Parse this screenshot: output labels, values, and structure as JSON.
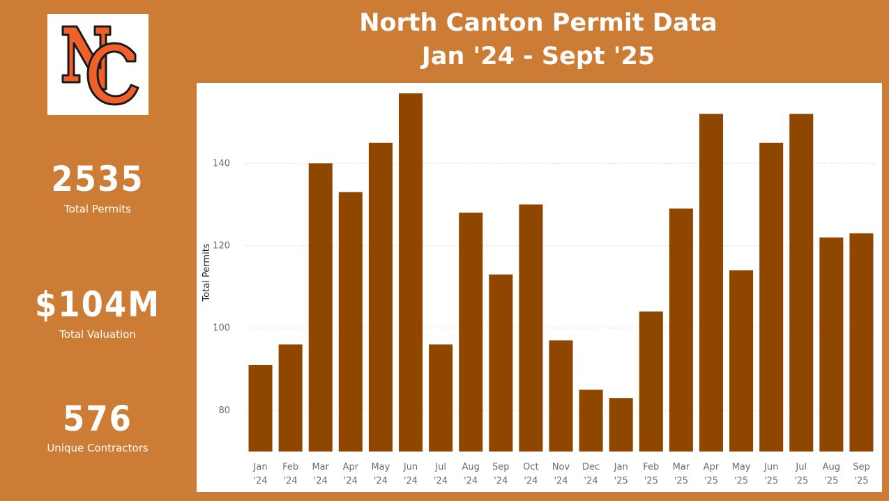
{
  "header": {
    "title_line1": "North Canton Permit Data",
    "title_line2": "Jan '24 - Sept '25"
  },
  "logo": {
    "text": "NC",
    "primary_color": "#f0602a",
    "outline_color": "#1a1a1a"
  },
  "kpis": {
    "total_permits": {
      "value": "2535",
      "label": "Total Permits"
    },
    "total_valuation": {
      "value": "$104M",
      "label": "Total Valuation"
    },
    "unique_contractors": {
      "value": "576",
      "label": "Unique Contractors"
    }
  },
  "colors": {
    "background": "#cd7c35",
    "bar": "#8f4700",
    "panel": "#ffffff"
  },
  "chart_data": {
    "type": "bar",
    "ylabel": "Total Permits",
    "ylim": [
      70,
      158
    ],
    "yticks": [
      80,
      100,
      120,
      140
    ],
    "grid": true,
    "categories": [
      [
        "Jan",
        "'24"
      ],
      [
        "Feb",
        "'24"
      ],
      [
        "Mar",
        "'24"
      ],
      [
        "Apr",
        "'24"
      ],
      [
        "May",
        "'24"
      ],
      [
        "Jun",
        "'24"
      ],
      [
        "Jul",
        "'24"
      ],
      [
        "Aug",
        "'24"
      ],
      [
        "Sep",
        "'24"
      ],
      [
        "Oct",
        "'24"
      ],
      [
        "Nov",
        "'24"
      ],
      [
        "Dec",
        "'24"
      ],
      [
        "Jan",
        "'25"
      ],
      [
        "Feb",
        "'25"
      ],
      [
        "Mar",
        "'25"
      ],
      [
        "Apr",
        "'25"
      ],
      [
        "May",
        "'25"
      ],
      [
        "Jun",
        "'25"
      ],
      [
        "Jul",
        "'25"
      ],
      [
        "Aug",
        "'25"
      ],
      [
        "Sep",
        "'25"
      ]
    ],
    "values": [
      91,
      96,
      140,
      133,
      145,
      157,
      96,
      128,
      113,
      130,
      97,
      85,
      83,
      104,
      129,
      152,
      114,
      145,
      152,
      122,
      123
    ]
  }
}
